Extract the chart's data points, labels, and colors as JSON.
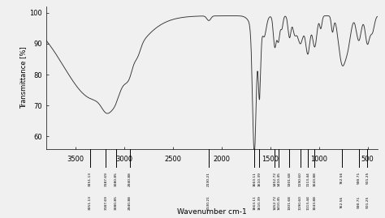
{
  "title": "",
  "xlabel": "Wavenumber cm-1",
  "ylabel": "Transmittance [%]",
  "xmin": 400,
  "xmax": 3800,
  "ymin": 56,
  "ymax": 102,
  "yticks": [
    60,
    70,
    80,
    90,
    100
  ],
  "xticks": [
    500,
    1000,
    1500,
    2000,
    2500,
    3000,
    3500
  ],
  "background_color": "#f0f0f0",
  "line_color": "#333333",
  "peak_wavenumbers": [
    3351,
    3187,
    3080,
    2940,
    2130,
    1663,
    1610,
    1452,
    1410,
    1301,
    1190,
    1113,
    1043,
    762,
    590,
    501
  ],
  "peak_labels_top": [
    "3351.13",
    "3187.69",
    "3080.85",
    "2940.88",
    "2130.21",
    "1663.11",
    "1610.39",
    "1452.72",
    "1410.45",
    "1301.68",
    "1190.60",
    "1113.44",
    "1043.88",
    "762.56",
    "590.71",
    "501.25"
  ],
  "peak_labels_bot": [
    "3351.13",
    "3187.69",
    "3080.85",
    "2940.88",
    "2130.21",
    "1663.11",
    "1610.39",
    "1452.72",
    "1410.45",
    "1301.68",
    "1190.60",
    "1113.44",
    "1043.88",
    "762.56",
    "590.71",
    "501.25"
  ]
}
